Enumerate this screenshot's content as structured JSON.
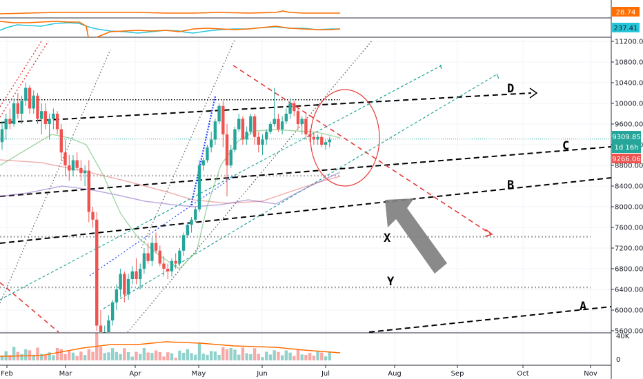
{
  "chart_data": {
    "type": "candlestick",
    "timeframe": "1D",
    "x_labels": [
      "Feb",
      "Mar",
      "Apr",
      "May",
      "Jun",
      "Jul",
      "Aug",
      "Sep",
      "Oct",
      "Nov"
    ],
    "y_ticks": [
      "11200.00",
      "10800.00",
      "10400.00",
      "10000.00",
      "9600.00",
      "9200.00",
      "8800.00",
      "8400.00",
      "8000.00",
      "7600.00",
      "7200.00",
      "6800.00",
      "6400.00",
      "6000.00",
      "5600.00"
    ],
    "ylim": [
      5550,
      11250
    ],
    "price_badges": {
      "last": "9309.85",
      "countdown": "1d 16h",
      "level": "9266.06"
    },
    "annotations": [
      "D",
      "C",
      "B",
      "A",
      "X",
      "Y"
    ],
    "levels": {
      "X": 7420,
      "Y": 6440,
      "top": 10070,
      "mid": 8600
    },
    "volume_axis_label": "40K",
    "volume_zero_label": "0",
    "indicator_1": {
      "value": "28.74",
      "color": "#ff6d00"
    },
    "indicator_2": {
      "value": "237.41",
      "color": "#26c6da"
    },
    "candles": [
      [
        9250,
        9650,
        9100,
        9500
      ],
      [
        9500,
        9800,
        9300,
        9700
      ],
      [
        9700,
        9900,
        9500,
        9600
      ],
      [
        9600,
        10100,
        9550,
        10000
      ],
      [
        10000,
        10200,
        9700,
        9800
      ],
      [
        9800,
        10150,
        9600,
        10050
      ],
      [
        10050,
        10400,
        9950,
        10300
      ],
      [
        10300,
        10350,
        9800,
        9900
      ],
      [
        9900,
        10250,
        9800,
        10150
      ],
      [
        10150,
        10200,
        9600,
        9700
      ],
      [
        9700,
        10000,
        9400,
        9850
      ],
      [
        9850,
        10000,
        9500,
        9600
      ],
      [
        9600,
        9800,
        9300,
        9700
      ],
      [
        9700,
        9900,
        9500,
        9800
      ],
      [
        9800,
        9850,
        9400,
        9500
      ],
      [
        9500,
        9600,
        8900,
        9050
      ],
      [
        9050,
        9300,
        8600,
        8800
      ],
      [
        8800,
        9000,
        8500,
        8700
      ],
      [
        8700,
        9000,
        8600,
        8900
      ],
      [
        8900,
        9050,
        8700,
        8750
      ],
      [
        8750,
        8900,
        8500,
        8650
      ],
      [
        8650,
        8800,
        8400,
        8700
      ],
      [
        8700,
        8900,
        7700,
        7900
      ],
      [
        7900,
        8000,
        7600,
        7750
      ],
      [
        7750,
        7900,
        5600,
        5700
      ],
      [
        5700,
        6000,
        4500,
        5300
      ],
      [
        5300,
        5700,
        5000,
        5400
      ],
      [
        5400,
        5900,
        5300,
        5800
      ],
      [
        5800,
        6200,
        5700,
        6150
      ],
      [
        6150,
        6500,
        6000,
        6400
      ],
      [
        6400,
        6800,
        6250,
        6700
      ],
      [
        6700,
        6750,
        6150,
        6300
      ],
      [
        6300,
        6700,
        6200,
        6600
      ],
      [
        6600,
        6850,
        6500,
        6750
      ],
      [
        6750,
        7000,
        6500,
        6600
      ],
      [
        6600,
        6900,
        6400,
        6800
      ],
      [
        6800,
        7200,
        6700,
        7100
      ],
      [
        7100,
        7300,
        6900,
        6950
      ],
      [
        6950,
        7400,
        6850,
        7300
      ],
      [
        7300,
        7500,
        7100,
        7150
      ],
      [
        7150,
        7250,
        6850,
        6900
      ],
      [
        6900,
        7050,
        6650,
        6800
      ],
      [
        6800,
        6900,
        6600,
        6750
      ],
      [
        6750,
        7000,
        6650,
        6950
      ],
      [
        6950,
        7100,
        6800,
        6900
      ],
      [
        6900,
        7200,
        6850,
        7150
      ],
      [
        7150,
        7500,
        7050,
        7450
      ],
      [
        7450,
        7700,
        7400,
        7650
      ],
      [
        7650,
        7800,
        7500,
        7750
      ],
      [
        7750,
        8000,
        7700,
        7950
      ],
      [
        7950,
        8900,
        7900,
        8800
      ],
      [
        8800,
        8950,
        8700,
        8900
      ],
      [
        8900,
        9200,
        8850,
        9150
      ],
      [
        9150,
        9450,
        9050,
        9300
      ],
      [
        9300,
        9700,
        9200,
        9650
      ],
      [
        9650,
        10000,
        9600,
        9950
      ],
      [
        9950,
        10050,
        9150,
        9400
      ],
      [
        9400,
        9600,
        8200,
        8800
      ],
      [
        8800,
        9200,
        8750,
        9100
      ],
      [
        9100,
        9550,
        9050,
        9500
      ],
      [
        9500,
        9800,
        9450,
        9700
      ],
      [
        9700,
        9750,
        9200,
        9300
      ],
      [
        9300,
        9550,
        9200,
        9450
      ],
      [
        9450,
        9800,
        9400,
        9750
      ],
      [
        9750,
        9800,
        9200,
        9350
      ],
      [
        9350,
        9450,
        9050,
        9200
      ],
      [
        9200,
        9400,
        9000,
        9300
      ],
      [
        9300,
        9500,
        9200,
        9450
      ],
      [
        9450,
        9650,
        9400,
        9600
      ],
      [
        9600,
        10300,
        9550,
        9700
      ],
      [
        9700,
        9800,
        9450,
        9500
      ],
      [
        9500,
        9750,
        9400,
        9650
      ],
      [
        9650,
        9900,
        9600,
        9800
      ],
      [
        9800,
        10100,
        9700,
        10000
      ],
      [
        10000,
        10050,
        9750,
        9850
      ],
      [
        9850,
        9950,
        9500,
        9600
      ],
      [
        9600,
        9750,
        9400,
        9700
      ],
      [
        9700,
        9800,
        9300,
        9400
      ],
      [
        9400,
        9500,
        9250,
        9350
      ],
      [
        9350,
        9450,
        9200,
        9300
      ],
      [
        9300,
        9400,
        9200,
        9350
      ],
      [
        9350,
        9400,
        9150,
        9200
      ],
      [
        9200,
        9300,
        9100,
        9250
      ],
      [
        9250,
        9350,
        9150,
        9300
      ]
    ]
  }
}
